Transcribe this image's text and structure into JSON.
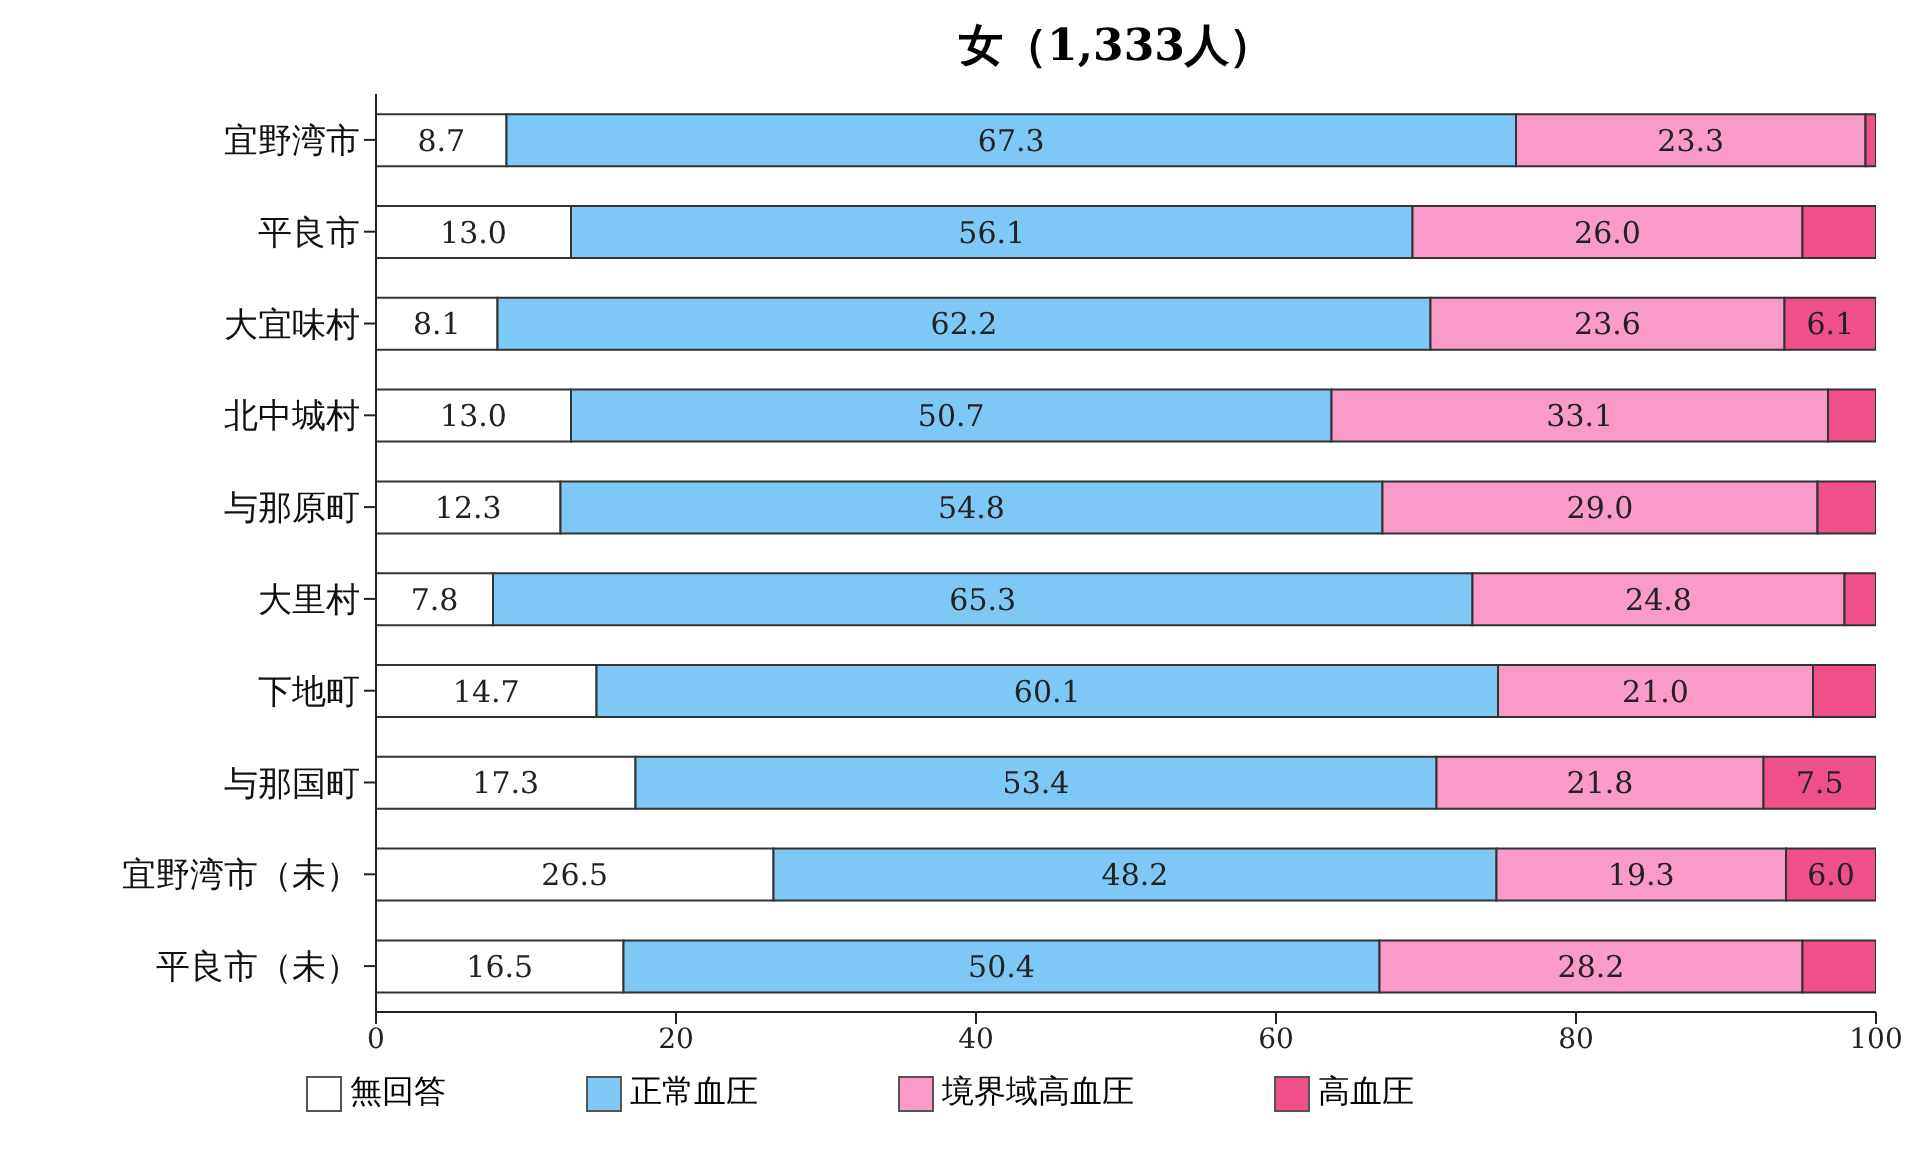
{
  "chart_data": {
    "type": "bar",
    "orientation": "horizontal",
    "stacked": true,
    "title": "女（1,333人）",
    "categories": [
      "宜野湾市",
      "平良市",
      "大宜味村",
      "北中城村",
      "与那原町",
      "大里村",
      "下地町",
      "与那国町",
      "宜野湾市（未）",
      "平良市（未）"
    ],
    "series": [
      {
        "name": "無回答",
        "color": "#ffffff",
        "values": [
          8.7,
          13.0,
          8.1,
          13.0,
          12.3,
          7.8,
          14.7,
          17.3,
          26.5,
          16.5
        ],
        "value_labels": [
          "8.7",
          "13.0",
          "8.1",
          "13.0",
          "12.3",
          "7.8",
          "14.7",
          "17.3",
          "26.5",
          "16.5"
        ]
      },
      {
        "name": "正常血圧",
        "color": "#7ec8f5",
        "values": [
          67.3,
          56.1,
          62.2,
          50.7,
          54.8,
          65.3,
          60.1,
          53.4,
          48.2,
          50.4
        ],
        "value_labels": [
          "67.3",
          "56.1",
          "62.2",
          "50.7",
          "54.8",
          "65.3",
          "60.1",
          "53.4",
          "48.2",
          "50.4"
        ]
      },
      {
        "name": "境界域高血圧",
        "color": "#f99ac8",
        "values": [
          23.3,
          26.0,
          23.6,
          33.1,
          29.0,
          24.8,
          21.0,
          21.8,
          19.3,
          28.2
        ],
        "value_labels": [
          "23.3",
          "26.0",
          "23.6",
          "33.1",
          "29.0",
          "24.8",
          "21.0",
          "21.8",
          "19.3",
          "28.2"
        ]
      },
      {
        "name": "高血圧",
        "color": "#f0508a",
        "values": [
          0.7,
          4.9,
          6.1,
          3.2,
          3.9,
          2.1,
          4.2,
          7.5,
          6.0,
          4.9
        ],
        "value_labels": [
          null,
          null,
          "6.1",
          null,
          null,
          null,
          null,
          "7.5",
          "6.0",
          null
        ]
      }
    ],
    "xlim": [
      0,
      100
    ],
    "xticks": [
      0,
      20,
      40,
      60,
      80,
      100
    ],
    "legend": "bottom"
  }
}
